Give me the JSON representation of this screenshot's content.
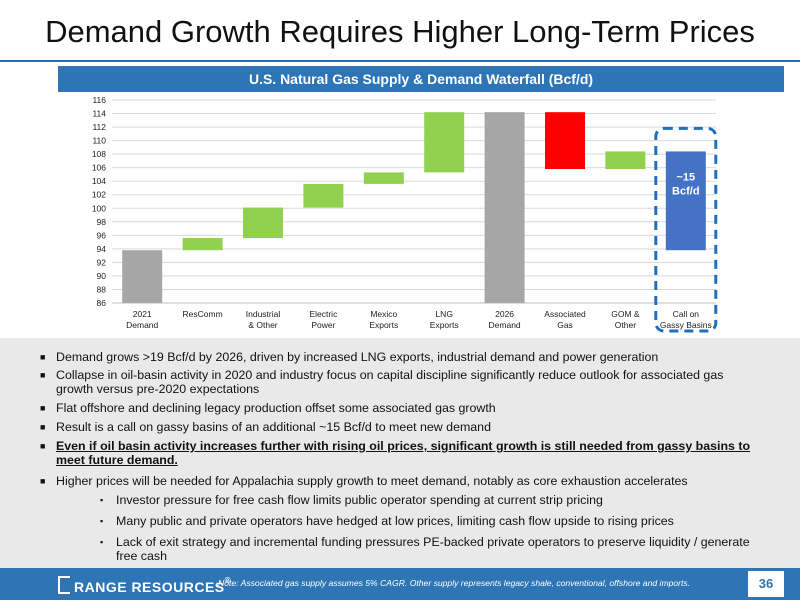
{
  "slide": {
    "title": "Demand Growth Requires Higher Long-Term Prices",
    "page_number": "36"
  },
  "chart_data": {
    "type": "bar",
    "subtype": "waterfall",
    "title": "U.S. Natural Gas Supply & Demand Waterfall (Bcf/d)",
    "ylim": [
      86,
      116
    ],
    "yticks": [
      86,
      88,
      90,
      92,
      94,
      96,
      98,
      100,
      102,
      104,
      106,
      108,
      110,
      112,
      114,
      116
    ],
    "grid": true,
    "categories": [
      [
        "2021",
        "Demand"
      ],
      [
        "ResComm"
      ],
      [
        "Industrial",
        "& Other"
      ],
      [
        "Electric",
        "Power"
      ],
      [
        "Mexico",
        "Exports"
      ],
      [
        "LNG",
        "Exports"
      ],
      [
        "2026",
        "Demand"
      ],
      [
        "Associated",
        "Gas"
      ],
      [
        "GOM &",
        "Other"
      ],
      [
        "Call on",
        "Gassy Basins"
      ]
    ],
    "bars": [
      {
        "start": 86,
        "end": 93.8,
        "color": "#a6a6a6"
      },
      {
        "start": 93.8,
        "end": 95.6,
        "color": "#92d050"
      },
      {
        "start": 95.6,
        "end": 100.1,
        "color": "#92d050"
      },
      {
        "start": 100.1,
        "end": 103.6,
        "color": "#92d050"
      },
      {
        "start": 103.6,
        "end": 105.3,
        "color": "#92d050"
      },
      {
        "start": 105.3,
        "end": 114.2,
        "color": "#92d050"
      },
      {
        "start": 86,
        "end": 114.2,
        "color": "#a6a6a6"
      },
      {
        "start": 105.8,
        "end": 114.2,
        "color": "#ff0000"
      },
      {
        "start": 105.8,
        "end": 108.4,
        "color": "#92d050"
      },
      {
        "start": 93.8,
        "end": 108.4,
        "color": "#4472c4"
      }
    ],
    "annotation": [
      "~15",
      "Bcf/d"
    ]
  },
  "bullets": [
    {
      "level": 1,
      "bold": false,
      "text": "Demand grows >19 Bcf/d by 2026, driven by increased LNG exports, industrial demand and power generation"
    },
    {
      "level": 1,
      "bold": false,
      "text": "Collapse in oil-basin activity in 2020 and industry focus on capital discipline significantly reduce outlook for associated gas growth versus pre-2020 expectations"
    },
    {
      "level": 1,
      "bold": false,
      "text": "Flat offshore and declining legacy production offset some associated gas growth"
    },
    {
      "level": 1,
      "bold": false,
      "text": "Result is a call on gassy basins of an additional ~15 Bcf/d to meet new demand"
    },
    {
      "level": 1,
      "bold": true,
      "text": "Even if oil basin activity increases further with rising oil prices, significant growth is still needed from gassy basins to meet future demand."
    },
    {
      "level": 1,
      "bold": false,
      "text": "Higher prices will be needed for Appalachia supply growth to meet demand, notably as core exhaustion accelerates"
    },
    {
      "level": 2,
      "bold": false,
      "text": "Investor pressure for free cash flow limits public operator spending at current strip pricing"
    },
    {
      "level": 2,
      "bold": false,
      "text": "Many public and private operators have hedged at low prices, limiting cash flow upside to rising prices"
    },
    {
      "level": 2,
      "bold": false,
      "text": "Lack of exit strategy and incremental funding pressures PE-backed private operators to preserve liquidity / generate free cash"
    }
  ],
  "footer": {
    "logo_text": "RANGE RESOURCES",
    "logo_mark": "®",
    "note": "Note: Associated gas supply assumes 5% CAGR. Other supply represents legacy shale, conventional, offshore and imports."
  },
  "markers": {
    "level1": "■",
    "level2": "▪"
  },
  "colors": {
    "accent": "#2e75b6",
    "grey": "#a6a6a6",
    "green": "#92d050",
    "red": "#ff0000",
    "blue": "#4472c4"
  }
}
